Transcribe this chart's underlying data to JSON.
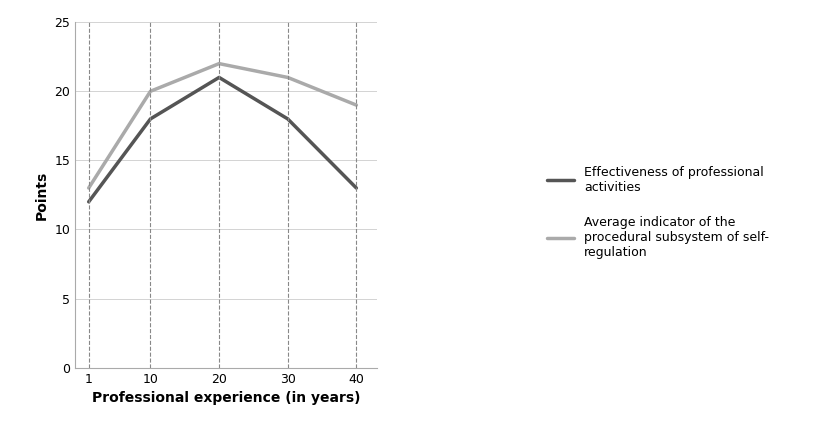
{
  "x_values": [
    1,
    10,
    20,
    30,
    40
  ],
  "effectiveness_values": [
    12,
    18,
    21,
    18,
    13
  ],
  "avg_indicator_values": [
    13,
    20,
    22,
    21,
    19
  ],
  "effectiveness_color": "#555555",
  "avg_indicator_color": "#aaaaaa",
  "effectiveness_label": "Effectiveness of professional\nactivities",
  "avg_indicator_label": "Average indicator of the\nprocedural subsystem of self-\nregulation",
  "xlabel": "Professional experience (in years)",
  "ylabel": "Points",
  "ylim": [
    0,
    25
  ],
  "xlim": [
    -1,
    43
  ],
  "yticks": [
    0,
    5,
    10,
    15,
    20,
    25
  ],
  "xticks": [
    1,
    10,
    20,
    30,
    40
  ],
  "line_width": 2.5,
  "background_color": "#ffffff",
  "grid_h_color": "#cccccc",
  "grid_v_color": "#888888",
  "tick_labelsize": 9,
  "xlabel_fontsize": 10,
  "ylabel_fontsize": 10
}
